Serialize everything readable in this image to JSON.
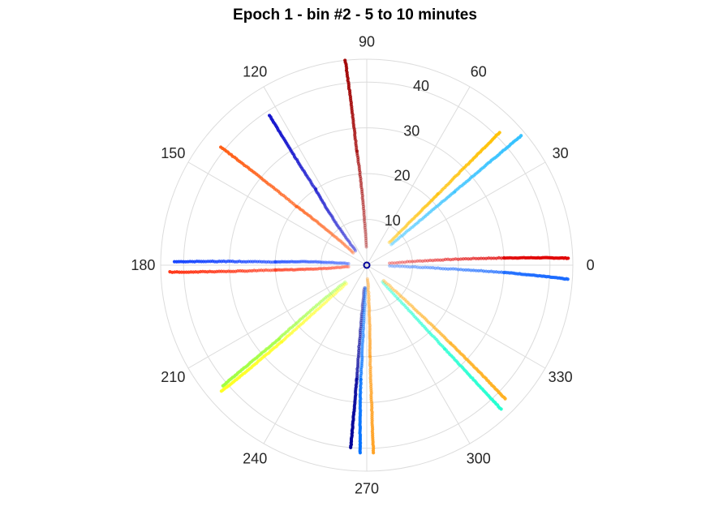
{
  "chart_data": {
    "type": "scatter",
    "coordinate_system": "polar",
    "title": "Epoch 1 - bin #2 - 5 to 10 minutes",
    "theta_unit": "degrees",
    "theta_ticks": [
      0,
      30,
      60,
      90,
      120,
      150,
      180,
      210,
      240,
      270,
      300,
      330
    ],
    "r_ticks": [
      10,
      20,
      30,
      40
    ],
    "r_range": [
      0,
      45
    ],
    "grid": true,
    "legend": "none",
    "series": [
      {
        "color": "#e00000",
        "theta": [
          5,
          3,
          2
        ],
        "r": [
          5,
          30,
          44
        ]
      },
      {
        "color": "#1a6aff",
        "theta": [
          -2,
          -3,
          -4
        ],
        "r": [
          5,
          30,
          44
        ]
      },
      {
        "color": "#30c0ff",
        "theta": [
          40,
          40,
          40
        ],
        "r": [
          7,
          25,
          44
        ]
      },
      {
        "color": "#ffc000",
        "theta": [
          45,
          45,
          45
        ],
        "r": [
          7,
          22,
          41
        ]
      },
      {
        "color": "#a00000",
        "theta": [
          92,
          95,
          96
        ],
        "r": [
          4,
          25,
          45
        ]
      },
      {
        "color": "#1010cc",
        "theta": [
          128,
          124,
          123
        ],
        "r": [
          4,
          20,
          39
        ]
      },
      {
        "color": "#ff5a10",
        "theta": [
          137,
          140,
          141
        ],
        "r": [
          4,
          20,
          41
        ]
      },
      {
        "color": "#1040ff",
        "theta": [
          175,
          178,
          179
        ],
        "r": [
          4,
          20,
          42
        ]
      },
      {
        "color": "#ff3010",
        "theta": [
          185,
          183,
          182
        ],
        "r": [
          4,
          20,
          43
        ]
      },
      {
        "color": "#a0ff40",
        "theta": [
          218,
          220,
          220
        ],
        "r": [
          6,
          25,
          41
        ]
      },
      {
        "color": "#ffff20",
        "theta": [
          222,
          222,
          221
        ],
        "r": [
          6,
          25,
          42
        ]
      },
      {
        "color": "#000099",
        "theta": [
          264,
          265,
          265
        ],
        "r": [
          5,
          25,
          40
        ]
      },
      {
        "color": "#0070ff",
        "theta": [
          267,
          267,
          268
        ],
        "r": [
          5,
          25,
          41
        ]
      },
      {
        "color": "#ffa020",
        "theta": [
          274,
          272,
          272
        ],
        "r": [
          3,
          20,
          41
        ]
      },
      {
        "color": "#20ffd0",
        "theta": [
          313,
          313,
          313
        ],
        "r": [
          5,
          25,
          43
        ]
      },
      {
        "color": "#ffb020",
        "theta": [
          318,
          317,
          316
        ],
        "r": [
          5,
          25,
          42
        ]
      }
    ]
  }
}
